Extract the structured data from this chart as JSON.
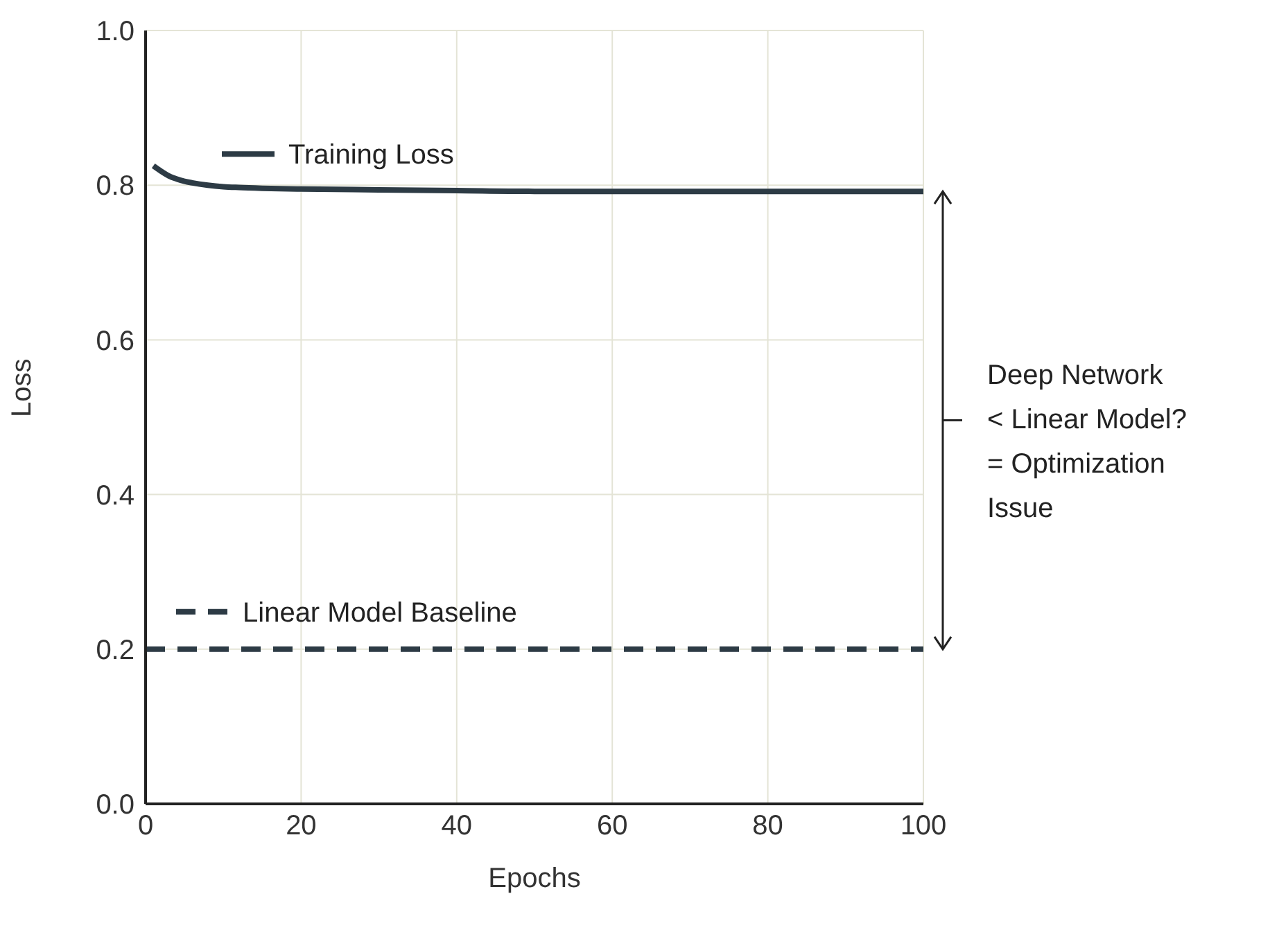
{
  "chart_data": {
    "type": "line",
    "xlabel": "Epochs",
    "ylabel": "Loss",
    "xlim": [
      0,
      100
    ],
    "xticks": [
      0,
      20,
      40,
      60,
      80,
      100
    ],
    "ylim": [
      0,
      1
    ],
    "yticks": [
      {
        "value": 0,
        "label": "0.0"
      },
      0.2,
      0.4,
      0.6,
      0.8,
      {
        "value": 1,
        "label": "1.0"
      }
    ],
    "grid": true,
    "legend": "top left",
    "marker": "none",
    "series": [
      {
        "name": "Training Loss",
        "color": "#2d3b45",
        "line_style": "solid",
        "x": [
          1,
          2,
          3,
          4,
          5,
          6,
          8,
          10,
          12,
          15,
          20,
          30,
          40,
          50,
          60,
          80,
          100
        ],
        "values": [
          0.825,
          0.818,
          0.812,
          0.808,
          0.805,
          0.803,
          0.8,
          0.798,
          0.797,
          0.796,
          0.795,
          0.794,
          0.793,
          0.792,
          0.792,
          0.792,
          0.792
        ]
      },
      {
        "name": "Linear Model Baseline",
        "color": "#2d3b45",
        "line_style": "dashed",
        "x": [
          0,
          100
        ],
        "values": [
          0.2,
          0.2
        ]
      }
    ],
    "annotations": [
      "Deep Network\n< Linear Model?\n= Optimization\nIssue"
    ]
  }
}
